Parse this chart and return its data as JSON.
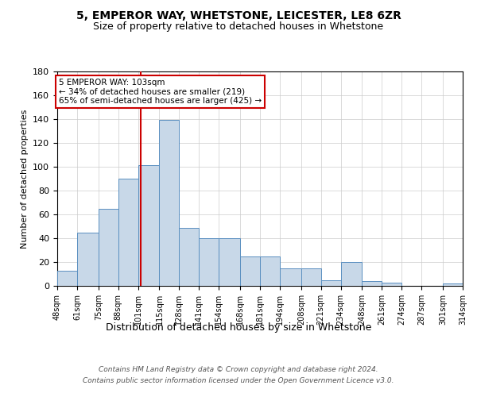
{
  "title1": "5, EMPEROR WAY, WHETSTONE, LEICESTER, LE8 6ZR",
  "title2": "Size of property relative to detached houses in Whetstone",
  "xlabel": "Distribution of detached houses by size in Whetstone",
  "ylabel": "Number of detached properties",
  "bar_values": [
    13,
    45,
    65,
    90,
    101,
    139,
    49,
    40,
    40,
    25,
    25,
    15,
    15,
    5,
    20,
    4,
    3,
    0,
    0,
    2
  ],
  "bar_labels": [
    "48sqm",
    "61sqm",
    "75sqm",
    "88sqm",
    "101sqm",
    "115sqm",
    "128sqm",
    "141sqm",
    "154sqm",
    "168sqm",
    "181sqm",
    "194sqm",
    "208sqm",
    "221sqm",
    "234sqm",
    "248sqm",
    "261sqm",
    "274sqm",
    "287sqm",
    "301sqm",
    "314sqm"
  ],
  "bar_edges": [
    48,
    61,
    75,
    88,
    101,
    115,
    128,
    141,
    154,
    168,
    181,
    194,
    208,
    221,
    234,
    248,
    261,
    274,
    287,
    301,
    314
  ],
  "bar_color": "#c8d8e8",
  "bar_edge_color": "#5a8fc0",
  "vline_x": 103,
  "vline_color": "#cc0000",
  "ylim": [
    0,
    180
  ],
  "yticks": [
    0,
    20,
    40,
    60,
    80,
    100,
    120,
    140,
    160,
    180
  ],
  "annotation_title": "5 EMPEROR WAY: 103sqm",
  "annotation_line1": "← 34% of detached houses are smaller (219)",
  "annotation_line2": "65% of semi-detached houses are larger (425) →",
  "annotation_box_color": "#cc0000",
  "footer1": "Contains HM Land Registry data © Crown copyright and database right 2024.",
  "footer2": "Contains public sector information licensed under the Open Government Licence v3.0.",
  "bg_color": "#ffffff",
  "grid_color": "#cccccc"
}
